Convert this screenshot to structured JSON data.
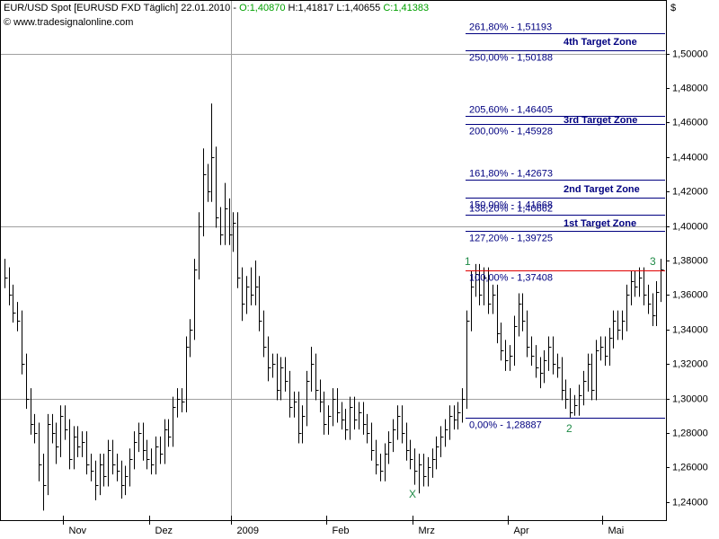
{
  "chart_data": {
    "type": "hlc",
    "title": "EUR/USD Spot [EURUSD FXD  Täglich] 22.01.2010 -",
    "ohlc_header": {
      "open": "O:1,40870",
      "high": "H:1,41817",
      "low": "L:1,40655",
      "close": "C:1,41383"
    },
    "source": "© www.tradesignalonline.com",
    "currency": "$",
    "color": "#000000",
    "xlim": [
      -1,
      153
    ],
    "xticks": [
      {
        "value": 14,
        "label": "Nov"
      },
      {
        "value": 34,
        "label": "Dez"
      },
      {
        "value": 53,
        "label": "2009"
      },
      {
        "value": 75,
        "label": "Feb"
      },
      {
        "value": 95,
        "label": "Mrz"
      },
      {
        "value": 117,
        "label": "Apr"
      },
      {
        "value": 139,
        "label": "Mai"
      }
    ],
    "xgrid": [
      53
    ],
    "ylim": [
      1.23,
      1.53
    ],
    "yticks": [
      {
        "value": 1.24,
        "label": "1,24000"
      },
      {
        "value": 1.26,
        "label": "1,26000"
      },
      {
        "value": 1.28,
        "label": "1,28000"
      },
      {
        "value": 1.3,
        "label": "1,30000"
      },
      {
        "value": 1.32,
        "label": "1,32000"
      },
      {
        "value": 1.34,
        "label": "1,34000"
      },
      {
        "value": 1.36,
        "label": "1,36000"
      },
      {
        "value": 1.38,
        "label": "1,38000"
      },
      {
        "value": 1.4,
        "label": "1,40000"
      },
      {
        "value": 1.42,
        "label": "1,42000"
      },
      {
        "value": 1.44,
        "label": "1,44000"
      },
      {
        "value": 1.46,
        "label": "1,46000"
      },
      {
        "value": 1.48,
        "label": "1,48000"
      },
      {
        "value": 1.5,
        "label": "1,50000"
      }
    ],
    "ygrid": [
      1.3,
      1.4,
      1.5
    ],
    "high": [
      1.381,
      1.376,
      1.366,
      1.356,
      1.351,
      1.326,
      1.306,
      1.291,
      1.286,
      1.268,
      1.291,
      1.291,
      1.286,
      1.296,
      1.296,
      1.288,
      1.284,
      1.284,
      1.281,
      1.281,
      1.268,
      1.264,
      1.268,
      1.268,
      1.276,
      1.276,
      1.268,
      1.264,
      1.261,
      1.271,
      1.281,
      1.286,
      1.286,
      1.276,
      1.271,
      1.278,
      1.278,
      1.288,
      1.288,
      1.301,
      1.306,
      1.306,
      1.336,
      1.346,
      1.381,
      1.408,
      1.445,
      1.436,
      1.471,
      1.446,
      1.411,
      1.425,
      1.416,
      1.408,
      1.408,
      1.376,
      1.371,
      1.376,
      1.38,
      1.371,
      1.351,
      1.336,
      1.326,
      1.326,
      1.324,
      1.324,
      1.316,
      1.304,
      1.304,
      1.296,
      1.316,
      1.33,
      1.326,
      1.311,
      1.304,
      1.296,
      1.306,
      1.306,
      1.298,
      1.294,
      1.301,
      1.301,
      1.298,
      1.298,
      1.291,
      1.286,
      1.276,
      1.268,
      1.274,
      1.281,
      1.288,
      1.296,
      1.296,
      1.286,
      1.276,
      1.271,
      1.268,
      1.268,
      1.266,
      1.271,
      1.278,
      1.284,
      1.288,
      1.296,
      1.296,
      1.298,
      1.306,
      1.351,
      1.374,
      1.378,
      1.378,
      1.376,
      1.376,
      1.366,
      1.366,
      1.344,
      1.334,
      1.331,
      1.348,
      1.361,
      1.361,
      1.351,
      1.336,
      1.331,
      1.324,
      1.328,
      1.336,
      1.336,
      1.326,
      1.324,
      1.311,
      1.306,
      1.302,
      1.308,
      1.316,
      1.326,
      1.326,
      1.334,
      1.336,
      1.336,
      1.341,
      1.351,
      1.351,
      1.351,
      1.366,
      1.374,
      1.374,
      1.376,
      1.376,
      1.366,
      1.361,
      1.368,
      1.381
    ],
    "low": [
      1.364,
      1.354,
      1.344,
      1.339,
      1.314,
      1.294,
      1.279,
      1.274,
      1.252,
      1.235,
      1.244,
      1.274,
      1.262,
      1.266,
      1.276,
      1.259,
      1.259,
      1.266,
      1.266,
      1.256,
      1.252,
      1.241,
      1.244,
      1.249,
      1.249,
      1.256,
      1.252,
      1.242,
      1.244,
      1.249,
      1.259,
      1.269,
      1.264,
      1.259,
      1.256,
      1.256,
      1.262,
      1.262,
      1.272,
      1.272,
      1.289,
      1.292,
      1.292,
      1.324,
      1.334,
      1.369,
      1.394,
      1.414,
      1.414,
      1.399,
      1.389,
      1.389,
      1.389,
      1.385,
      1.364,
      1.345,
      1.349,
      1.354,
      1.354,
      1.339,
      1.324,
      1.31,
      1.312,
      1.299,
      1.299,
      1.304,
      1.289,
      1.289,
      1.274,
      1.274,
      1.284,
      1.304,
      1.299,
      1.292,
      1.279,
      1.279,
      1.284,
      1.286,
      1.282,
      1.276,
      1.276,
      1.282,
      1.282,
      1.279,
      1.274,
      1.264,
      1.256,
      1.252,
      1.252,
      1.262,
      1.269,
      1.276,
      1.274,
      1.264,
      1.259,
      1.25,
      1.245,
      1.249,
      1.249,
      1.254,
      1.259,
      1.266,
      1.272,
      1.276,
      1.282,
      1.282,
      1.286,
      1.294,
      1.339,
      1.359,
      1.354,
      1.354,
      1.349,
      1.349,
      1.332,
      1.322,
      1.316,
      1.316,
      1.319,
      1.336,
      1.339,
      1.324,
      1.319,
      1.312,
      1.306,
      1.309,
      1.316,
      1.314,
      1.312,
      1.299,
      1.294,
      1.289,
      1.29,
      1.29,
      1.296,
      1.304,
      1.299,
      1.299,
      1.322,
      1.319,
      1.319,
      1.329,
      1.334,
      1.334,
      1.339,
      1.354,
      1.359,
      1.359,
      1.354,
      1.349,
      1.342,
      1.342,
      1.356
    ],
    "close": [
      1.37,
      1.36,
      1.35,
      1.345,
      1.32,
      1.3,
      1.285,
      1.28,
      1.262,
      1.25,
      1.285,
      1.28,
      1.272,
      1.29,
      1.282,
      1.265,
      1.278,
      1.272,
      1.275,
      1.262,
      1.258,
      1.25,
      1.262,
      1.255,
      1.27,
      1.262,
      1.258,
      1.25,
      1.255,
      1.265,
      1.275,
      1.28,
      1.27,
      1.265,
      1.262,
      1.272,
      1.268,
      1.282,
      1.278,
      1.295,
      1.3,
      1.298,
      1.33,
      1.34,
      1.375,
      1.4,
      1.43,
      1.42,
      1.44,
      1.405,
      1.395,
      1.41,
      1.395,
      1.402,
      1.37,
      1.355,
      1.365,
      1.36,
      1.365,
      1.345,
      1.33,
      1.318,
      1.32,
      1.305,
      1.318,
      1.31,
      1.295,
      1.298,
      1.28,
      1.29,
      1.31,
      1.32,
      1.305,
      1.298,
      1.285,
      1.29,
      1.3,
      1.292,
      1.288,
      1.282,
      1.295,
      1.288,
      1.292,
      1.285,
      1.28,
      1.27,
      1.262,
      1.258,
      1.268,
      1.275,
      1.282,
      1.29,
      1.28,
      1.27,
      1.265,
      1.258,
      1.262,
      1.255,
      1.26,
      1.265,
      1.272,
      1.278,
      1.282,
      1.29,
      1.288,
      1.292,
      1.3,
      1.345,
      1.365,
      1.372,
      1.36,
      1.37,
      1.355,
      1.36,
      1.338,
      1.328,
      1.322,
      1.325,
      1.342,
      1.355,
      1.345,
      1.33,
      1.325,
      1.318,
      1.315,
      1.322,
      1.33,
      1.32,
      1.318,
      1.305,
      1.3,
      1.292,
      1.296,
      1.302,
      1.31,
      1.32,
      1.305,
      1.328,
      1.33,
      1.325,
      1.335,
      1.345,
      1.34,
      1.345,
      1.36,
      1.368,
      1.365,
      1.37,
      1.36,
      1.355,
      1.348,
      1.362,
      1.375
    ],
    "levels": [
      {
        "label": "261,80% - 1,51193",
        "value": 1.51193,
        "color": "#000080"
      },
      {
        "label": "250,00% - 1,50188",
        "value": 1.50188,
        "color": "#000080"
      },
      {
        "label": "205,60% - 1,46405",
        "value": 1.46405,
        "color": "#000080"
      },
      {
        "label": "200,00% - 1,45928",
        "value": 1.45928,
        "color": "#000080"
      },
      {
        "label": "161,80% - 1,42673",
        "value": 1.42673,
        "color": "#000080"
      },
      {
        "label": "150,00% - 1,41668",
        "value": 1.41668,
        "color": "#000080"
      },
      {
        "label": "138,20% - 1,40662",
        "value": 1.40662,
        "color": "#000080"
      },
      {
        "label": "127,20% - 1,39725",
        "value": 1.39725,
        "color": "#000080"
      },
      {
        "label": "100,00% - 1,37408",
        "value": 1.37408,
        "color": "#e00000"
      },
      {
        "label": "0,00% - 1,28887",
        "value": 1.28887,
        "color": "#000080"
      }
    ],
    "zones": [
      "4th Target Zone",
      "3rd Target Zone",
      "2nd Target Zone",
      "1st Target Zone"
    ],
    "markers": [
      "1",
      "2",
      "3",
      "X"
    ]
  }
}
